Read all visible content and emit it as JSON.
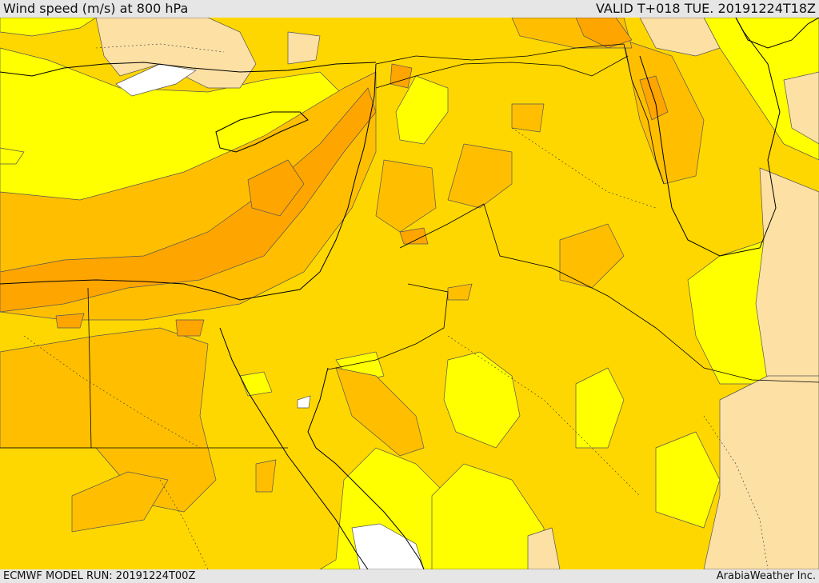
{
  "header": {
    "title": "Wind speed (m/s) at 800 hPa",
    "valid": "VALID T+018 TUE. 20191224T18Z"
  },
  "footer": {
    "model_run": "ECMWF MODEL RUN: 20191224T00Z",
    "credit": "ArabiaWeather Inc."
  },
  "map": {
    "colors": {
      "calm": "#ffffff",
      "light": "#fde0a4",
      "yellow": "#ffff00",
      "gold": "#ffd700",
      "amber": "#ffbf00",
      "orange": "#ffa500",
      "contour": "#555555",
      "coast": "#000000"
    }
  }
}
